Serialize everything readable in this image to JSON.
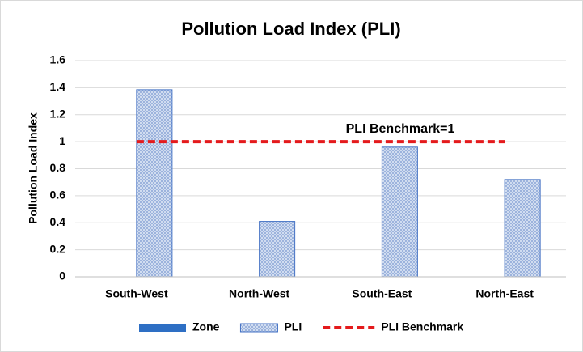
{
  "chart_data": {
    "type": "bar",
    "title": "Pollution Load Index (PLI)",
    "y_label": "Pollution Load Index",
    "categories": [
      "South-West",
      "North-West",
      "South-East",
      "North-East"
    ],
    "series": [
      {
        "name": "Zone",
        "type": "bar",
        "color": "#2e6fc4",
        "values": [
          null,
          null,
          null,
          null
        ]
      },
      {
        "name": "PLI",
        "type": "bar",
        "color": "#4472c4",
        "pattern": "crosshatch",
        "values": [
          1.385,
          0.41,
          0.96,
          0.72
        ]
      },
      {
        "name": "PLI Benchmark",
        "type": "line",
        "color": "#e41a1c",
        "dashed": true,
        "values": [
          1,
          1,
          1,
          1
        ]
      }
    ],
    "annotation": "PLI Benchmark=1",
    "ylim": [
      0,
      1.6
    ],
    "yticks": [
      0,
      0.2,
      0.4,
      0.6,
      0.8,
      1,
      1.2,
      1.4,
      1.6
    ],
    "grid": true,
    "legend": "bottom"
  }
}
